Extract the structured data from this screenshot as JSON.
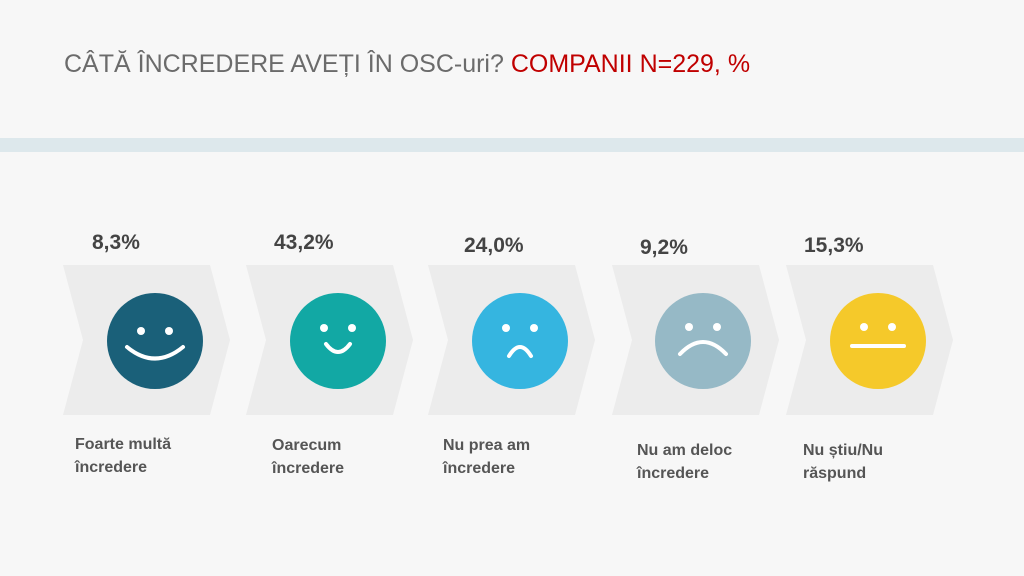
{
  "title": {
    "question": "CÂTĂ ÎNCREDERE AVEȚI ÎN OSC-uri?",
    "subtitle": "COMPANII N=229, %"
  },
  "items": [
    {
      "value": "8,3%",
      "label": [
        "Foarte multă",
        "încredere"
      ]
    },
    {
      "value": "43,2%",
      "label": [
        "Oarecum",
        "încredere"
      ]
    },
    {
      "value": "24,0%",
      "label": [
        "Nu prea am",
        "încredere"
      ]
    },
    {
      "value": "9,2%",
      "label": [
        "Nu am deloc",
        "încredere"
      ]
    },
    {
      "value": "15,3%",
      "label": [
        "Nu știu/Nu",
        "răspund"
      ]
    }
  ]
}
